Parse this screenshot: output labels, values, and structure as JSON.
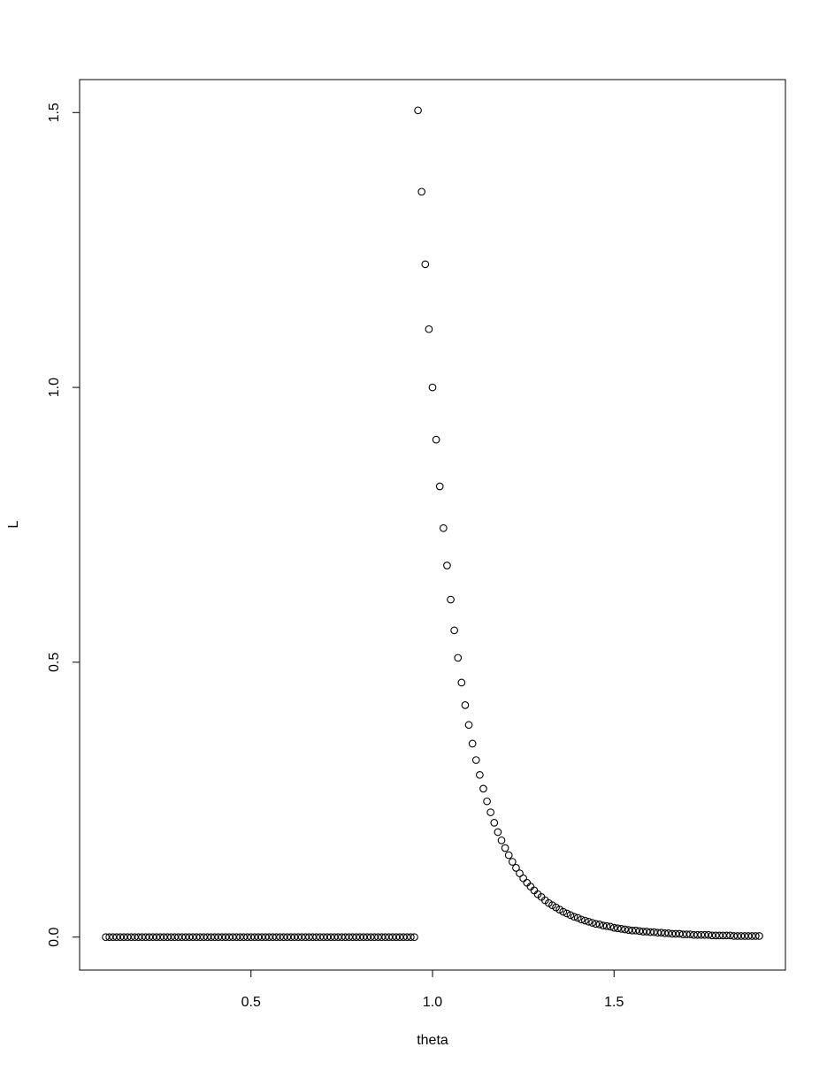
{
  "chart_data": {
    "type": "scatter",
    "x_label": "theta",
    "y_label": "L",
    "x": [
      0.1,
      0.11,
      0.12,
      0.13,
      0.14,
      0.15,
      0.16,
      0.17,
      0.18,
      0.19,
      0.2,
      0.21,
      0.22,
      0.23,
      0.24,
      0.25,
      0.26,
      0.27,
      0.28,
      0.29,
      0.3,
      0.31,
      0.32,
      0.33,
      0.34,
      0.35,
      0.36,
      0.37,
      0.38,
      0.39,
      0.4,
      0.41,
      0.42,
      0.43,
      0.44,
      0.45,
      0.46,
      0.47,
      0.48,
      0.49,
      0.5,
      0.51,
      0.52,
      0.53,
      0.54,
      0.55,
      0.56,
      0.57,
      0.58,
      0.59,
      0.6,
      0.61,
      0.62,
      0.63,
      0.64,
      0.65,
      0.66,
      0.67,
      0.68,
      0.69,
      0.7,
      0.71,
      0.72,
      0.73,
      0.74,
      0.75,
      0.76,
      0.77,
      0.78,
      0.79,
      0.8,
      0.81,
      0.82,
      0.83,
      0.84,
      0.85,
      0.86,
      0.87,
      0.88,
      0.89,
      0.9,
      0.91,
      0.92,
      0.93,
      0.94,
      0.95,
      0.96,
      0.97,
      0.98,
      0.99,
      1.0,
      1.01,
      1.02,
      1.03,
      1.04,
      1.05,
      1.06,
      1.07,
      1.08,
      1.09,
      1.1,
      1.11,
      1.12,
      1.13,
      1.14,
      1.15,
      1.16,
      1.17,
      1.18,
      1.19,
      1.2,
      1.21,
      1.22,
      1.23,
      1.24,
      1.25,
      1.26,
      1.27,
      1.28,
      1.29,
      1.3,
      1.31,
      1.32,
      1.33,
      1.34,
      1.35,
      1.36,
      1.37,
      1.38,
      1.39,
      1.4,
      1.41,
      1.42,
      1.43,
      1.44,
      1.45,
      1.46,
      1.47,
      1.48,
      1.49,
      1.5,
      1.51,
      1.52,
      1.53,
      1.54,
      1.55,
      1.56,
      1.57,
      1.58,
      1.59,
      1.6,
      1.61,
      1.62,
      1.63,
      1.64,
      1.65,
      1.66,
      1.67,
      1.68,
      1.69,
      1.7,
      1.71,
      1.72,
      1.73,
      1.74,
      1.75,
      1.76,
      1.77,
      1.78,
      1.79,
      1.8,
      1.81,
      1.82,
      1.83,
      1.84,
      1.85,
      1.86,
      1.87,
      1.88,
      1.89,
      1.9
    ],
    "values": [
      0,
      0,
      0,
      0,
      0,
      0,
      0,
      0,
      0,
      0,
      0,
      0,
      0,
      0,
      0,
      0,
      0,
      0,
      0,
      0,
      0,
      0,
      0,
      0,
      0,
      0,
      0,
      0,
      0,
      0,
      0,
      0,
      0,
      0,
      0,
      0,
      0,
      0,
      0,
      0,
      0,
      0,
      0,
      0,
      0,
      0,
      0,
      0,
      0,
      0,
      0,
      0,
      0,
      0,
      0,
      0,
      0,
      0,
      0,
      0,
      0,
      0,
      0,
      0,
      0,
      0,
      0,
      0,
      0,
      0,
      0,
      0,
      0,
      0,
      0,
      0,
      0,
      0,
      0,
      0,
      0,
      0,
      0,
      0,
      0,
      0,
      1.504,
      1.356,
      1.224,
      1.106,
      1.0,
      0.905,
      0.82,
      0.744,
      0.676,
      0.614,
      0.558,
      0.508,
      0.463,
      0.422,
      0.386,
      0.352,
      0.322,
      0.295,
      0.27,
      0.247,
      0.227,
      0.208,
      0.191,
      0.176,
      0.162,
      0.149,
      0.137,
      0.126,
      0.116,
      0.107,
      0.099,
      0.092,
      0.085,
      0.078,
      0.073,
      0.067,
      0.062,
      0.058,
      0.054,
      0.05,
      0.046,
      0.043,
      0.04,
      0.037,
      0.035,
      0.032,
      0.03,
      0.028,
      0.026,
      0.024,
      0.023,
      0.021,
      0.02,
      0.019,
      0.017,
      0.016,
      0.015,
      0.014,
      0.013,
      0.012,
      0.012,
      0.011,
      0.01,
      0.01,
      0.009,
      0.009,
      0.008,
      0.008,
      0.007,
      0.007,
      0.006,
      0.006,
      0.006,
      0.005,
      0.005,
      0.005,
      0.004,
      0.004,
      0.004,
      0.004,
      0.004,
      0.003,
      0.003,
      0.003,
      0.003,
      0.003,
      0.003,
      0.002,
      0.002,
      0.002,
      0.002,
      0.002,
      0.002,
      0.002,
      0.002
    ],
    "color": "#000000",
    "xlim": [
      0.028,
      1.972
    ],
    "ylim": [
      -0.06,
      1.56
    ],
    "xticks": [
      0.5,
      {
        "value": 1,
        "label": "1.0"
      },
      1.5
    ],
    "yticks": [
      {
        "value": 0,
        "label": "0.0"
      },
      0.5,
      {
        "value": 1,
        "label": "1.0"
      },
      1.5
    ]
  }
}
